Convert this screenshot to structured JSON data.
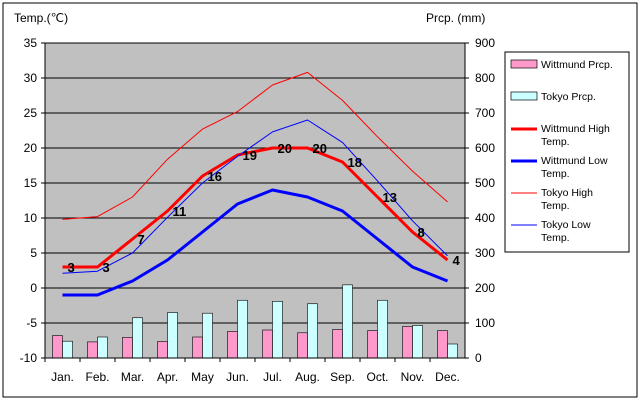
{
  "chart_data": {
    "type": "bar",
    "y_left_label": "Temp.(℃)",
    "y_right_label": "Prcp. (mm)",
    "categories": [
      "Jan.",
      "Feb.",
      "Mar.",
      "Apr.",
      "May",
      "Jun.",
      "Jul.",
      "Aug.",
      "Sep.",
      "Oct.",
      "Nov.",
      "Dec."
    ],
    "y_left_range": [
      -10,
      35
    ],
    "y_left_ticks": [
      "35",
      "30",
      "25",
      "20",
      "15",
      "10",
      "5",
      "0",
      "-5",
      "-10"
    ],
    "y_right_range": [
      0,
      900
    ],
    "y_right_ticks": [
      "900",
      "800",
      "700",
      "600",
      "500",
      "400",
      "300",
      "200",
      "100",
      "0"
    ],
    "grid": true,
    "legend_placement": "right",
    "series": [
      {
        "name": "Wittmund Prcp.",
        "kind": "bar",
        "axis": "right",
        "color": "#ff99cc",
        "values": [
          64,
          46,
          59,
          47,
          60,
          76,
          80,
          72,
          81,
          78,
          90,
          78
        ]
      },
      {
        "name": "Tokyo Prcp.",
        "kind": "bar",
        "axis": "right",
        "color": "#ccffff",
        "values": [
          48,
          60,
          115,
          130,
          128,
          165,
          162,
          155,
          209,
          165,
          93,
          40
        ]
      },
      {
        "name": "Wittmund High Temp.",
        "kind": "line",
        "axis": "left",
        "color": "#ff0000",
        "width": 3,
        "values": [
          3,
          3,
          7,
          11,
          16,
          19,
          20,
          20,
          18,
          13,
          8,
          4
        ]
      },
      {
        "name": "Wittmund Low Temp.",
        "kind": "line",
        "axis": "left",
        "color": "#0000ff",
        "width": 3,
        "values": [
          -1,
          -1,
          1,
          4,
          8,
          12,
          14,
          13,
          11,
          7,
          3,
          1
        ]
      },
      {
        "name": "Tokyo High Temp.",
        "kind": "line",
        "axis": "left",
        "color": "#ff0000",
        "width": 1,
        "values": [
          9.8,
          10.2,
          13,
          18.4,
          22.7,
          25.2,
          29,
          30.8,
          26.8,
          21.6,
          16.7,
          12.3
        ]
      },
      {
        "name": "Tokyo Low Temp.",
        "kind": "line",
        "axis": "left",
        "color": "#0000ff",
        "width": 1,
        "values": [
          2.1,
          2.4,
          5,
          10.1,
          15,
          18.8,
          22.3,
          24,
          20.8,
          15.3,
          9.6,
          4.6
        ]
      }
    ],
    "data_labels": {
      "series": "Wittmund High Temp.",
      "values": [
        "3",
        "3",
        "7",
        "11",
        "16",
        "19",
        "20",
        "20",
        "18",
        "13",
        "8",
        "4"
      ]
    }
  }
}
